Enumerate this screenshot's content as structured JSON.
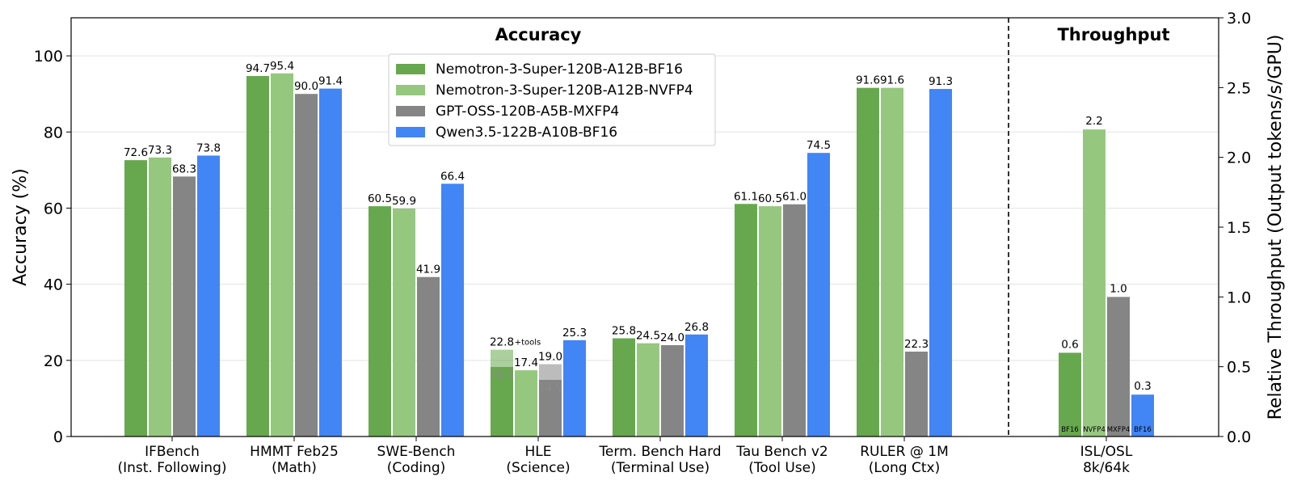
{
  "chart_data": {
    "type": "bar",
    "sections": [
      "Accuracy",
      "Throughput"
    ],
    "ylabel": "Accuracy (%)",
    "ylim": [
      0,
      110
    ],
    "yticks": [
      0,
      20,
      40,
      60,
      80,
      100
    ],
    "y2label": "Relative Throughput (Output tokens/s/GPU)",
    "y2lim": [
      0,
      3.0
    ],
    "y2ticks": [
      "0.0",
      "0.5",
      "1.0",
      "1.5",
      "2.0",
      "2.5",
      "3.0"
    ],
    "grid": true,
    "legend_position": "top-center",
    "series": [
      {
        "name": "Nemotron-3-Super-120B-A12B-BF16",
        "color": "#67a84e",
        "values": [
          72.6,
          94.7,
          60.5,
          22.8,
          25.8,
          61.1,
          91.6
        ],
        "labels": [
          "72.6",
          "94.7",
          "60.5",
          "22.8",
          "25.8",
          "61.1",
          "91.6"
        ],
        "throughput": 0.6,
        "throughput_label": "0.6",
        "tag": "BF16"
      },
      {
        "name": "Nemotron-3-Super-120B-A12B-NVFP4",
        "color": "#96c77f",
        "values": [
          73.3,
          95.4,
          59.9,
          17.4,
          24.5,
          60.5,
          91.6
        ],
        "labels": [
          "73.3",
          "95.4",
          "59.9",
          "17.4",
          "24.5",
          "60.5",
          "91.6"
        ],
        "throughput": 2.2,
        "throughput_label": "2.2",
        "tag": "NVFP4"
      },
      {
        "name": "GPT-OSS-120B-A5B-MXFP4",
        "color": "#858585",
        "values": [
          68.3,
          90.0,
          41.9,
          19.0,
          24.0,
          61.0,
          22.3
        ],
        "labels": [
          "68.3",
          "90.0",
          "41.9",
          "19.0",
          "24.0",
          "61.0",
          "22.3"
        ],
        "throughput": 1.0,
        "throughput_label": "1.0",
        "tag": "MXFP4"
      },
      {
        "name": "Qwen3.5-122B-A10B-BF16",
        "color": "#4285f4",
        "values": [
          73.8,
          91.4,
          66.4,
          25.3,
          26.8,
          74.5,
          91.3
        ],
        "labels": [
          "73.8",
          "91.4",
          "66.4",
          "25.3",
          "26.8",
          "74.5",
          "91.3"
        ],
        "throughput": 0.3,
        "throughput_label": "0.3",
        "tag": "BF16"
      }
    ],
    "categories": [
      {
        "line1": "IFBench",
        "line2": "(Inst. Following)"
      },
      {
        "line1": "HMMT Feb25",
        "line2": "(Math)"
      },
      {
        "line1": "SWE-Bench",
        "line2": "(Coding)"
      },
      {
        "line1": "HLE",
        "line2": "(Science)"
      },
      {
        "line1": "Term. Bench Hard",
        "line2": "(Terminal Use)"
      },
      {
        "line1": "Tau Bench v2",
        "line2": "(Tool Use)"
      },
      {
        "line1": "RULER @ 1M",
        "line2": "(Long Ctx)"
      }
    ],
    "throughput_category": {
      "line1": "ISL/OSL",
      "line2": "8k/64k"
    },
    "hle_tools": {
      "note": "+tools",
      "series_index": [
        0,
        2
      ],
      "base_values": [
        18.3,
        14.9
      ],
      "base_labels": [
        "18.3",
        "14.9"
      ]
    }
  }
}
